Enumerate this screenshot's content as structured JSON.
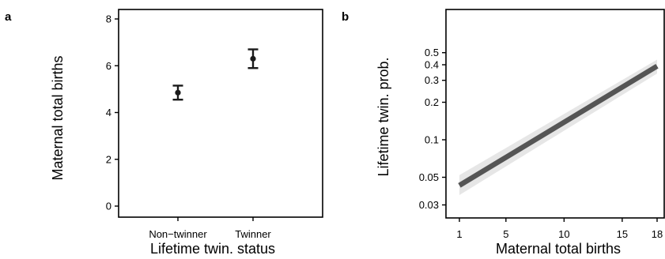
{
  "chart_data": [
    {
      "panel": "a",
      "type": "scatter",
      "xlabel": "Lifetime twin. status",
      "ylabel": "Maternal total births",
      "categories": [
        "Non−twinner",
        "Twinner"
      ],
      "values": [
        4.85,
        6.3
      ],
      "error_low": [
        4.55,
        5.9
      ],
      "error_high": [
        5.15,
        6.7
      ],
      "ylim": [
        0,
        8
      ],
      "yticks": [
        0,
        2,
        4,
        6,
        8
      ],
      "ytick_labels": [
        "0",
        "2",
        "4",
        "6",
        "8"
      ],
      "grid": false,
      "colors": {
        "point": "#1a1a1a",
        "frame": "#000000"
      }
    },
    {
      "panel": "b",
      "type": "line",
      "xlabel": "Maternal total births",
      "ylabel": "Lifetime twin. prob.",
      "y_scale": "log",
      "x": [
        1,
        18
      ],
      "y": [
        0.043,
        0.39
      ],
      "ci_low": [
        0.036,
        0.34
      ],
      "ci_high": [
        0.052,
        0.44
      ],
      "xlim": [
        1,
        18
      ],
      "xticks": [
        1,
        5,
        10,
        15,
        18
      ],
      "xtick_labels": [
        "1",
        "5",
        "10",
        "15",
        "18"
      ],
      "ylim": [
        0.03,
        0.5
      ],
      "yticks": [
        0.03,
        0.05,
        0.1,
        0.2,
        0.3,
        0.4,
        0.5
      ],
      "ytick_labels": [
        "0.03",
        "0.05",
        "0.1",
        "0.2",
        "0.3",
        "0.4",
        "0.5"
      ],
      "grid": false,
      "colors": {
        "line": "#555555",
        "ribbon": "#e6e6e6",
        "frame": "#000000"
      }
    }
  ]
}
